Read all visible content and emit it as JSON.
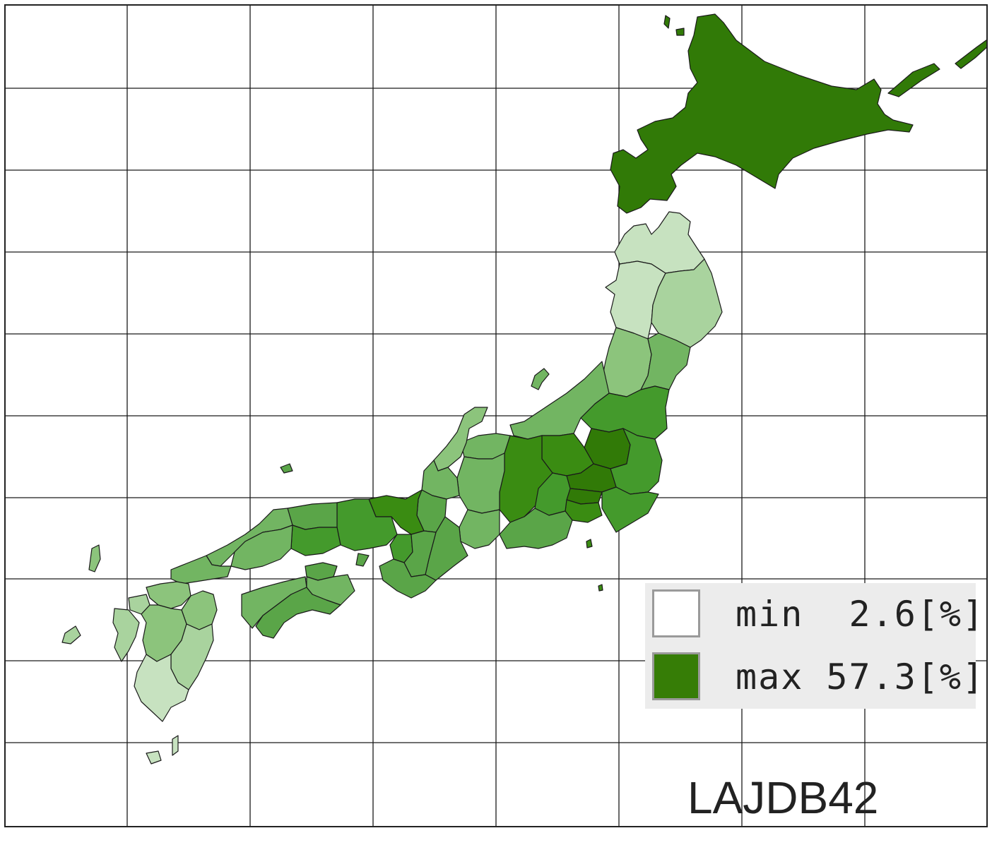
{
  "map": {
    "colors": {
      "min": "#ffffff",
      "max": "#367d06",
      "level_1": "#c7e2c0",
      "level_2": "#a9d39e",
      "level_3": "#8cc47c",
      "level_4": "#72b562",
      "level_5": "#5aa548",
      "level_6": "#449a2c",
      "level_7": "#3a8c12",
      "level_8": "#317a07"
    }
  },
  "legend": {
    "min_label": "min  2.6[%]",
    "max_label": "max 57.3[%]"
  },
  "map_code": "LAJDB42"
}
